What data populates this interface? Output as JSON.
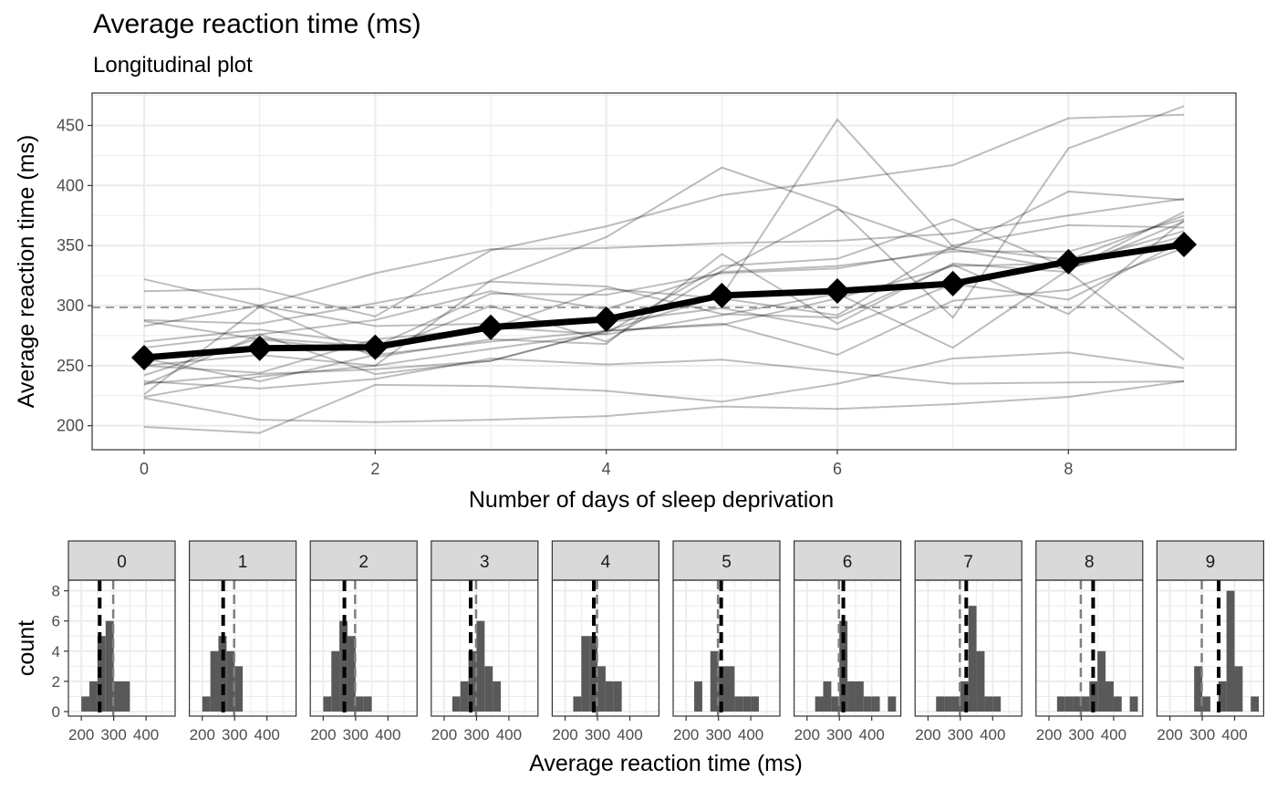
{
  "title": "Average reaction time (ms)",
  "subtitle": "Longitudinal plot",
  "chart_data": [
    {
      "type": "line",
      "title": "Average reaction time (ms)",
      "subtitle": "Longitudinal plot",
      "xlabel": "Number of days of sleep deprivation",
      "ylabel": "Average reaction time (ms)",
      "xlim": [
        -0.45,
        9.45
      ],
      "ylim": [
        180,
        477
      ],
      "x_ticks": [
        0,
        2,
        4,
        6,
        8
      ],
      "y_ticks": [
        200,
        250,
        300,
        350,
        400,
        450
      ],
      "grid": true,
      "reference_line": {
        "y": 298.5,
        "style": "dashed"
      },
      "x": [
        0,
        1,
        2,
        3,
        4,
        5,
        6,
        7,
        8,
        9
      ],
      "mean_series": [
        256.7,
        264.5,
        265.4,
        282.0,
        288.7,
        308.5,
        312.2,
        318.3,
        336.6,
        350.9
      ],
      "subject_series": [
        [
          250,
          259,
          250,
          321,
          357,
          415,
          382,
          290,
          431,
          466
        ],
        [
          223,
          205,
          203,
          205,
          208,
          216,
          214,
          218,
          224,
          237
        ],
        [
          199,
          194,
          234,
          233,
          229,
          220,
          235,
          256,
          261,
          248
        ],
        [
          322,
          300,
          283,
          285,
          286,
          298,
          280,
          318,
          305,
          354
        ],
        [
          288,
          285,
          302,
          320,
          316,
          293,
          290,
          334,
          293,
          371
        ],
        [
          235,
          243,
          247,
          254,
          279,
          284,
          306,
          333,
          335,
          362
        ],
        [
          283,
          300,
          327,
          347,
          348,
          352,
          354,
          360,
          375,
          389
        ],
        [
          265,
          276,
          243,
          254,
          279,
          285,
          259,
          304,
          313,
          348
        ],
        [
          242,
          273,
          266,
          310,
          309,
          327,
          331,
          347,
          330,
          378
        ],
        [
          287,
          272,
          261,
          300,
          270,
          329,
          380,
          347,
          395,
          388
        ],
        [
          234,
          276,
          288,
          312,
          297,
          328,
          333,
          345,
          345,
          372
        ],
        [
          312,
          314,
          291,
          346,
          366,
          392,
          404,
          417,
          456,
          459
        ],
        [
          237,
          231,
          239,
          256,
          251,
          255,
          245,
          235,
          236,
          237
        ],
        [
          226,
          299,
          257,
          272,
          268,
          343,
          285,
          335,
          328,
          255
        ],
        [
          256,
          237,
          259,
          270,
          279,
          308,
          455,
          349,
          338,
          375
        ],
        [
          270,
          280,
          268,
          282,
          276,
          292,
          310,
          265,
          330,
          370
        ],
        [
          224,
          241,
          250,
          264,
          277,
          333,
          339,
          372,
          331,
          358
        ],
        [
          250,
          244,
          272,
          281,
          314,
          306,
          292,
          350,
          367,
          365
        ]
      ]
    },
    {
      "type": "bar",
      "chart_kind": "histogram",
      "xlabel": "Average reaction time (ms)",
      "ylabel": "count",
      "xlim": [
        160,
        490
      ],
      "ylim": [
        -0.3,
        8.7
      ],
      "x_ticks": [
        200,
        300,
        400
      ],
      "y_ticks": [
        0,
        2,
        4,
        6,
        8
      ],
      "bin_width": 25,
      "bin_starts": [
        175,
        200,
        225,
        250,
        275,
        300,
        325,
        350,
        375,
        400,
        425,
        450
      ],
      "overall_mean": 298.5,
      "panels": [
        {
          "label": "0",
          "mean": 256.7,
          "counts": [
            0,
            1,
            2,
            5,
            6,
            2,
            2,
            0,
            0,
            0,
            0,
            0
          ]
        },
        {
          "label": "1",
          "mean": 264.5,
          "counts": [
            0,
            1,
            4,
            5,
            4,
            3,
            0,
            0,
            0,
            0,
            0,
            0
          ]
        },
        {
          "label": "2",
          "mean": 265.4,
          "counts": [
            0,
            1,
            4,
            6,
            5,
            1,
            1,
            0,
            0,
            0,
            0,
            0
          ]
        },
        {
          "label": "3",
          "mean": 282.0,
          "counts": [
            0,
            0,
            1,
            2,
            4,
            6,
            3,
            2,
            0,
            0,
            0,
            0
          ]
        },
        {
          "label": "4",
          "mean": 288.7,
          "counts": [
            0,
            0,
            1,
            5,
            5,
            3,
            2,
            2,
            0,
            0,
            0,
            0
          ]
        },
        {
          "label": "5",
          "mean": 308.5,
          "counts": [
            0,
            0,
            2,
            0,
            4,
            3,
            3,
            1,
            1,
            1,
            0,
            0
          ]
        },
        {
          "label": "6",
          "mean": 312.2,
          "counts": [
            0,
            0,
            1,
            2,
            1,
            6,
            2,
            2,
            1,
            1,
            0,
            1
          ]
        },
        {
          "label": "7",
          "mean": 318.3,
          "counts": [
            0,
            0,
            1,
            1,
            1,
            2,
            7,
            4,
            1,
            1,
            0,
            0
          ]
        },
        {
          "label": "8",
          "mean": 336.6,
          "counts": [
            0,
            0,
            1,
            1,
            1,
            1,
            2,
            4,
            2,
            1,
            0,
            1
          ]
        },
        {
          "label": "9",
          "mean": 350.9,
          "counts": [
            0,
            0,
            0,
            0,
            3,
            1,
            0,
            2,
            8,
            3,
            0,
            1
          ]
        }
      ]
    }
  ]
}
